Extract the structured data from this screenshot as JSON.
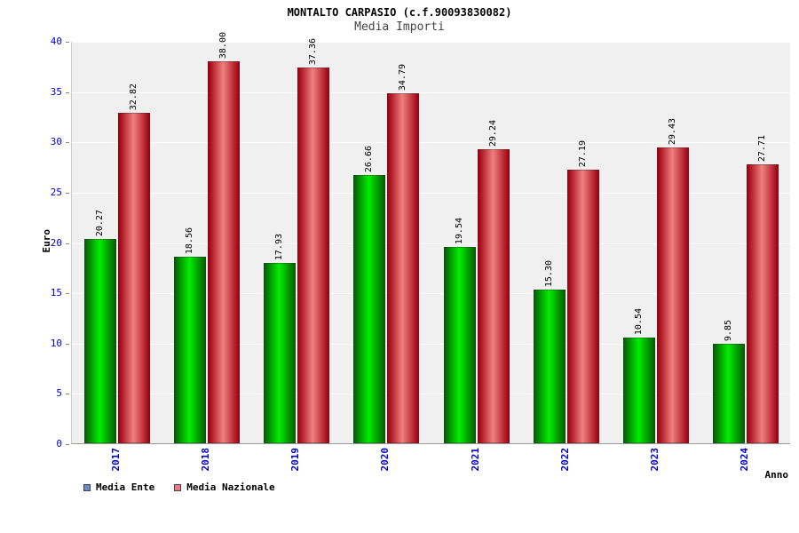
{
  "chart_data": {
    "type": "bar",
    "title": "MONTALTO CARPASIO (c.f.90093830082)",
    "subtitle": "Media Importi",
    "xlabel": "Anno",
    "ylabel": "Euro",
    "categories": [
      "2017",
      "2018",
      "2019",
      "2020",
      "2021",
      "2022",
      "2023",
      "2024"
    ],
    "series": [
      {
        "name": "Media Ente",
        "color_center": "#00ee00",
        "color_edge": "#056005",
        "values": [
          20.27,
          18.56,
          17.93,
          26.66,
          19.54,
          15.3,
          10.54,
          9.85
        ]
      },
      {
        "name": "Media Nazionale",
        "color_center": "#ef8080",
        "color_edge": "#a00010",
        "values": [
          32.82,
          38.0,
          37.36,
          34.79,
          29.24,
          27.19,
          29.43,
          27.71
        ]
      }
    ],
    "ylim": [
      0,
      40
    ],
    "ytick_step": 5,
    "grid": true,
    "legend_position": "bottom-left"
  },
  "legend": {
    "items": [
      {
        "label": "Media Ente",
        "swatch": "#6688cc"
      },
      {
        "label": "Media Nazionale",
        "swatch": "#ee7788"
      }
    ]
  },
  "colors": {
    "tick_label": "#0000cc",
    "plot_bg": "#f0f0f0",
    "grid": "#ffffff",
    "value_label": "#000000"
  }
}
